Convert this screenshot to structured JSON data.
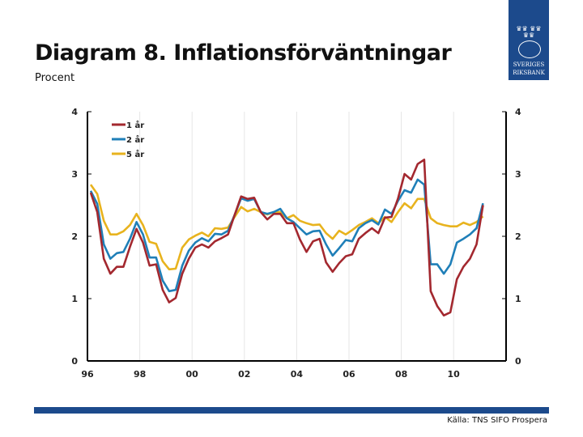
{
  "header": {
    "title": "Diagram 8. Inflationsförväntningar",
    "subtitle": "Procent",
    "logo_text": [
      "SVERIGES",
      "RIKSBANK"
    ]
  },
  "footer": {
    "source": "Källa: TNS SIFO Prospera"
  },
  "colors": {
    "1 år": "#a3282f",
    "2 år": "#1f7fb8",
    "5 år": "#e8b31e",
    "brand": "#1c4a8c"
  },
  "chart_data": {
    "type": "line",
    "title": "Diagram 8. Inflationsförväntningar",
    "ylabel": "Procent",
    "xlabel": "",
    "ylim": [
      0,
      4
    ],
    "xlim": [
      1996,
      2012
    ],
    "y_ticks": [
      0,
      1,
      2,
      3,
      4
    ],
    "y_tick_labels": [
      "0",
      "1",
      "2",
      "3",
      "4"
    ],
    "x_ticks": [
      1996,
      1998,
      2000,
      2002,
      2004,
      2006,
      2008,
      2010
    ],
    "x_tick_labels": [
      "96",
      "98",
      "00",
      "02",
      "04",
      "06",
      "08",
      "10"
    ],
    "grid": "vertical",
    "legend": "top-left",
    "x_start": 1996.125,
    "x_step": 0.25,
    "series": [
      {
        "name": "1 år",
        "values": [
          2.7,
          2.39,
          1.64,
          1.4,
          1.51,
          1.51,
          1.83,
          2.12,
          1.9,
          1.53,
          1.55,
          1.14,
          0.94,
          1.01,
          1.4,
          1.64,
          1.82,
          1.87,
          1.82,
          1.92,
          1.97,
          2.03,
          2.34,
          2.64,
          2.6,
          2.62,
          2.39,
          2.27,
          2.36,
          2.36,
          2.21,
          2.21,
          1.95,
          1.75,
          1.92,
          1.96,
          1.58,
          1.43,
          1.57,
          1.68,
          1.71,
          1.96,
          2.05,
          2.13,
          2.05,
          2.3,
          2.31,
          2.61,
          3.0,
          2.91,
          3.16,
          3.23,
          1.12,
          0.88,
          0.73,
          0.78,
          1.31,
          1.51,
          1.64,
          1.87,
          2.5
        ]
      },
      {
        "name": "2 år",
        "values": [
          2.73,
          2.52,
          1.87,
          1.64,
          1.73,
          1.75,
          1.96,
          2.23,
          2.03,
          1.66,
          1.66,
          1.29,
          1.12,
          1.14,
          1.53,
          1.77,
          1.9,
          1.97,
          1.92,
          2.04,
          2.03,
          2.09,
          2.34,
          2.61,
          2.57,
          2.6,
          2.39,
          2.36,
          2.39,
          2.44,
          2.29,
          2.23,
          2.13,
          2.03,
          2.08,
          2.09,
          1.87,
          1.69,
          1.81,
          1.94,
          1.92,
          2.13,
          2.21,
          2.26,
          2.19,
          2.43,
          2.36,
          2.57,
          2.74,
          2.7,
          2.91,
          2.83,
          1.55,
          1.55,
          1.4,
          1.55,
          1.9,
          1.96,
          2.03,
          2.13,
          2.53
        ]
      },
      {
        "name": "5 år",
        "values": [
          2.83,
          2.68,
          2.25,
          2.03,
          2.03,
          2.08,
          2.18,
          2.36,
          2.18,
          1.91,
          1.88,
          1.6,
          1.47,
          1.48,
          1.82,
          1.95,
          2.01,
          2.06,
          2.0,
          2.13,
          2.12,
          2.14,
          2.31,
          2.47,
          2.4,
          2.44,
          2.39,
          2.35,
          2.39,
          2.39,
          2.29,
          2.34,
          2.25,
          2.21,
          2.18,
          2.19,
          2.05,
          1.96,
          2.09,
          2.03,
          2.1,
          2.18,
          2.23,
          2.29,
          2.21,
          2.31,
          2.23,
          2.39,
          2.53,
          2.45,
          2.6,
          2.6,
          2.29,
          2.21,
          2.18,
          2.16,
          2.16,
          2.22,
          2.18,
          2.23,
          2.32
        ]
      }
    ]
  }
}
